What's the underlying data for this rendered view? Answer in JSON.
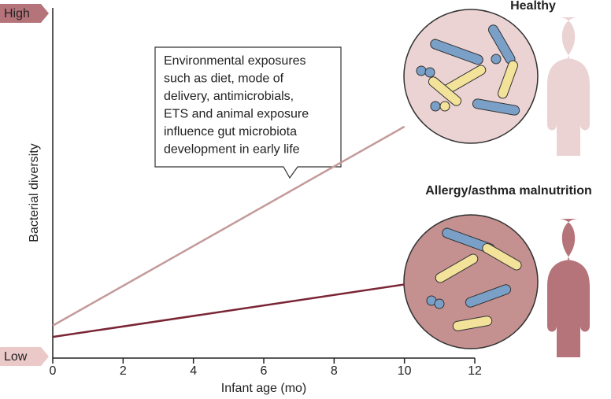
{
  "chart_data": {
    "type": "line",
    "x": [
      0,
      10
    ],
    "series": [
      {
        "name": "Healthy",
        "color": "#c49a9a",
        "values": [
          0.09,
          0.67
        ]
      },
      {
        "name": "Allergy/asthma malnutrition",
        "color": "#7a2535",
        "values": [
          0.057,
          0.21
        ]
      }
    ],
    "xlim": [
      0,
      12
    ],
    "xticks": [
      0,
      2,
      4,
      6,
      8,
      10,
      12
    ],
    "ylim": [
      0,
      1
    ],
    "yticks": [
      {
        "value": 0,
        "label": "Low"
      },
      {
        "value": 1,
        "label": "High"
      }
    ],
    "xlabel": "Infant age (mo)",
    "ylabel": "Bacterial diversity",
    "annotation": [
      "Environmental exposures",
      "such as diet, mode of",
      "delivery, antimicrobials,",
      "ETS and animal exposure",
      "influence gut microbiota",
      "development in early life"
    ]
  }
}
